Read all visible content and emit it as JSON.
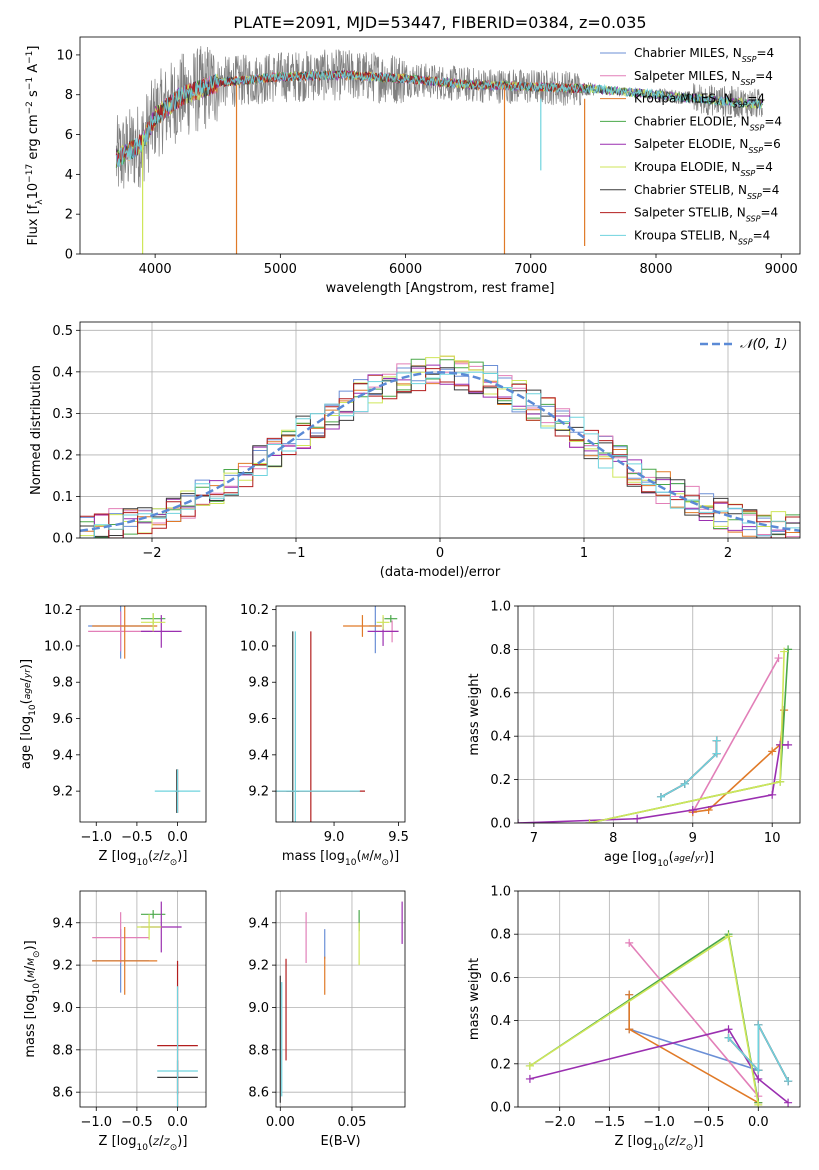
{
  "title": "PLATE=2091, MJD=53447, FIBERID=0384, z=0.035",
  "colors": {
    "Chabrier MILES": "#6b8fd6",
    "Salpeter MILES": "#e27fb8",
    "Kroupa MILES": "#e07a28",
    "Chabrier ELODIE": "#4aa84a",
    "Salpeter ELODIE": "#9a2fb0",
    "Kroupa ELODIE": "#cfe65a",
    "Chabrier STELIB": "#3a3a3a",
    "Salpeter STELIB": "#b21e1e",
    "Kroupa STELIB": "#6fd3de"
  },
  "legend": [
    {
      "name": "Chabrier MILES",
      "base": "Chabrier MILES, N",
      "sub": "SSP",
      "n": "=4"
    },
    {
      "name": "Salpeter MILES",
      "base": "Salpeter MILES, N",
      "sub": "SSP",
      "n": "=4"
    },
    {
      "name": "Kroupa MILES",
      "base": "Kroupa MILES, N",
      "sub": "SSP",
      "n": "=4"
    },
    {
      "name": "Chabrier ELODIE",
      "base": "Chabrier ELODIE, N",
      "sub": "SSP",
      "n": "=4"
    },
    {
      "name": "Salpeter ELODIE",
      "base": "Salpeter ELODIE, N",
      "sub": "SSP",
      "n": "=6"
    },
    {
      "name": "Kroupa ELODIE",
      "base": "Kroupa ELODIE, N",
      "sub": "SSP",
      "n": "=4"
    },
    {
      "name": "Chabrier STELIB",
      "base": "Chabrier STELIB, N",
      "sub": "SSP",
      "n": "=4"
    },
    {
      "name": "Salpeter STELIB",
      "base": "Salpeter STELIB, N",
      "sub": "SSP",
      "n": "=4"
    },
    {
      "name": "Kroupa STELIB",
      "base": "Kroupa STELIB, N",
      "sub": "SSP",
      "n": "=4"
    }
  ],
  "chart_data": [
    {
      "id": "spectrum",
      "type": "line",
      "xlabel": "wavelength [Angstrom, rest frame]",
      "ylabel": "Flux [fλ10⁻¹⁷ erg cm⁻² s⁻¹ A⁻¹]",
      "xlim": [
        3400,
        9150
      ],
      "ylim": [
        0,
        10.9
      ],
      "xticks": [
        4000,
        5000,
        6000,
        7000,
        8000,
        9000
      ],
      "yticks": [
        0,
        2,
        4,
        6,
        8,
        10
      ],
      "grid": false,
      "legend_position": "right",
      "data_wavelength_range": [
        3690,
        8850
      ],
      "model_wavelength_range": [
        3690,
        7430
      ],
      "continuum": [
        [
          3700,
          4.8
        ],
        [
          3900,
          5.6
        ],
        [
          4000,
          6.9
        ],
        [
          4200,
          7.9
        ],
        [
          4500,
          8.6
        ],
        [
          5000,
          8.9
        ],
        [
          5500,
          9.0
        ],
        [
          6000,
          8.8
        ],
        [
          6500,
          8.5
        ],
        [
          7000,
          8.4
        ],
        [
          7500,
          8.3
        ],
        [
          8000,
          8.0
        ],
        [
          8500,
          7.7
        ],
        [
          8850,
          7.5
        ]
      ]
    },
    {
      "id": "residuals",
      "type": "line",
      "xlabel": "(data-model)/error",
      "ylabel": "Normed distribution",
      "xlim": [
        -2.5,
        2.5
      ],
      "ylim": [
        0,
        0.52
      ],
      "xticks": [
        -2,
        -1,
        0,
        1,
        2
      ],
      "yticks": [
        0,
        0.1,
        0.2,
        0.3,
        0.4,
        0.5
      ],
      "grid": true,
      "legend_position": "top-right",
      "gaussian_label": "𝒩(0, 1)",
      "bin_width": 0.1,
      "histogram_shape": "standard normal, per-bin deviations about 0.02-0.05"
    },
    {
      "id": "age_vs_Z",
      "type": "scatter",
      "xlabel": "Z [log10(Z/Z⊙)]",
      "ylabel": "age  [log10(age/yr)]",
      "xlim": [
        -1.2,
        0.35
      ],
      "ylim": [
        9.03,
        10.22
      ],
      "xticks": [
        -1.0,
        -0.5,
        0.0
      ],
      "yticks": [
        9.2,
        9.4,
        9.6,
        9.8,
        10.0,
        10.2
      ],
      "grid": false,
      "points": [
        {
          "m": "Chabrier MILES",
          "x": -0.7,
          "xe": 0.4,
          "y": 10.11,
          "ye": 0.18
        },
        {
          "m": "Salpeter MILES",
          "x": -0.7,
          "xe": 0.4,
          "y": 10.08,
          "ye": 0.11
        },
        {
          "m": "Kroupa MILES",
          "x": -0.65,
          "xe": 0.4,
          "y": 10.11,
          "ye": 0.18
        },
        {
          "m": "Chabrier ELODIE",
          "x": -0.3,
          "xe": 0.15,
          "y": 10.15,
          "ye": 0.03
        },
        {
          "m": "Salpeter ELODIE",
          "x": -0.2,
          "xe": 0.25,
          "y": 10.08,
          "ye": 0.09
        },
        {
          "m": "Kroupa ELODIE",
          "x": -0.3,
          "xe": 0.15,
          "y": 10.13,
          "ye": 0.05
        },
        {
          "m": "Chabrier STELIB",
          "x": -0.01,
          "xe": 0.02,
          "y": 9.2,
          "ye": 0.12
        },
        {
          "m": "Salpeter STELIB",
          "x": 0.0,
          "xe": 0.02,
          "y": 9.2,
          "ye": 0.12
        },
        {
          "m": "Kroupa STELIB",
          "x": 0.0,
          "xe": 0.28,
          "y": 9.2,
          "ye": 0.12
        }
      ]
    },
    {
      "id": "age_vs_mass",
      "type": "scatter",
      "xlabel": "mass [log10(M/M⊙)]",
      "xlim": [
        8.55,
        9.55
      ],
      "ylim": [
        9.03,
        10.22
      ],
      "xticks": [
        9.0,
        9.5
      ],
      "yticks": [
        9.2,
        9.4,
        9.6,
        9.8,
        10.0,
        10.2
      ],
      "grid": false,
      "points": [
        {
          "m": "Chabrier MILES",
          "x": 9.32,
          "xe": 0.05,
          "y": 10.11,
          "ye": 0.15
        },
        {
          "m": "Salpeter MILES",
          "x": 9.45,
          "xe": 0.05,
          "y": 10.08,
          "ye": 0.06
        },
        {
          "m": "Kroupa MILES",
          "x": 9.22,
          "xe": 0.15,
          "y": 10.11,
          "ye": 0.06
        },
        {
          "m": "Chabrier ELODIE",
          "x": 9.44,
          "xe": 0.05,
          "y": 10.15,
          "ye": 0.02
        },
        {
          "m": "Salpeter ELODIE",
          "x": 9.38,
          "xe": 0.12,
          "y": 10.08,
          "ye": 0.08
        },
        {
          "m": "Kroupa ELODIE",
          "x": 9.38,
          "xe": 0.05,
          "y": 10.13,
          "ye": 0.04
        },
        {
          "m": "Chabrier STELIB",
          "x": 8.68,
          "xe": 0.05,
          "y": 9.2,
          "ye": 0.88
        },
        {
          "m": "Salpeter STELIB",
          "x": 8.82,
          "xe": 0.42,
          "y": 9.2,
          "ye": 0.88
        },
        {
          "m": "Kroupa STELIB",
          "x": 8.7,
          "xe": 0.5,
          "y": 9.2,
          "ye": 0.88
        }
      ]
    },
    {
      "id": "weight_vs_age",
      "type": "line",
      "xlabel": "age  [log10(age/yr)]",
      "ylabel": "mass weight",
      "xlim": [
        6.8,
        10.35
      ],
      "ylim": [
        0,
        1.0
      ],
      "xticks": [
        7,
        8,
        9,
        10
      ],
      "yticks": [
        0,
        0.2,
        0.4,
        0.6,
        0.8,
        1.0
      ],
      "grid": true,
      "series": [
        {
          "name": "Chabrier MILES",
          "points": [
            [
              8.6,
              0.12
            ],
            [
              8.9,
              0.18
            ],
            [
              9.3,
              0.32
            ],
            [
              9.3,
              0.38
            ]
          ]
        },
        {
          "name": "Salpeter MILES",
          "points": [
            [
              9.0,
              0.05
            ],
            [
              10.08,
              0.76
            ]
          ]
        },
        {
          "name": "Kroupa MILES",
          "points": [
            [
              9.0,
              0.05
            ],
            [
              9.2,
              0.06
            ],
            [
              10.0,
              0.33
            ],
            [
              10.1,
              0.36
            ],
            [
              10.15,
              0.52
            ]
          ]
        },
        {
          "name": "Chabrier ELODIE",
          "points": [
            [
              7.7,
              0.0
            ],
            [
              10.1,
              0.19
            ],
            [
              10.2,
              0.8
            ]
          ]
        },
        {
          "name": "Salpeter ELODIE",
          "points": [
            [
              6.8,
              0.0
            ],
            [
              8.3,
              0.02
            ],
            [
              9.0,
              0.06
            ],
            [
              10.0,
              0.13
            ],
            [
              10.1,
              0.36
            ],
            [
              10.2,
              0.36
            ]
          ]
        },
        {
          "name": "Kroupa ELODIE",
          "points": [
            [
              7.7,
              0.0
            ],
            [
              10.1,
              0.19
            ],
            [
              10.15,
              0.79
            ]
          ]
        },
        {
          "name": "Chabrier STELIB",
          "points": [
            [
              8.6,
              0.12
            ],
            [
              8.9,
              0.18
            ],
            [
              9.3,
              0.32
            ],
            [
              9.3,
              0.38
            ]
          ]
        },
        {
          "name": "Salpeter STELIB",
          "points": [
            [
              8.6,
              0.12
            ],
            [
              8.9,
              0.18
            ],
            [
              9.3,
              0.32
            ],
            [
              9.3,
              0.38
            ]
          ]
        },
        {
          "name": "Kroupa STELIB",
          "points": [
            [
              8.6,
              0.12
            ],
            [
              8.9,
              0.18
            ],
            [
              9.3,
              0.32
            ],
            [
              9.3,
              0.38
            ]
          ]
        }
      ]
    },
    {
      "id": "mass_vs_Z",
      "type": "scatter",
      "xlabel": "Z [log10(Z/Z⊙)]",
      "ylabel": "mass [log10(M/M⊙)]",
      "xlim": [
        -1.2,
        0.35
      ],
      "ylim": [
        8.53,
        9.55
      ],
      "xticks": [
        -1.0,
        -0.5,
        0.0
      ],
      "yticks": [
        8.6,
        8.8,
        9.0,
        9.2,
        9.4
      ],
      "grid": true,
      "points": [
        {
          "m": "Chabrier MILES",
          "x": -0.7,
          "xe": 0.35,
          "y": 9.22,
          "ye": 0.15
        },
        {
          "m": "Salpeter MILES",
          "x": -0.7,
          "xe": 0.35,
          "y": 9.33,
          "ye": 0.12
        },
        {
          "m": "Kroupa MILES",
          "x": -0.65,
          "xe": 0.4,
          "y": 9.22,
          "ye": 0.16
        },
        {
          "m": "Chabrier ELODIE",
          "x": -0.3,
          "xe": 0.15,
          "y": 9.44,
          "ye": 0.02
        },
        {
          "m": "Salpeter ELODIE",
          "x": -0.2,
          "xe": 0.25,
          "y": 9.38,
          "ye": 0.12
        },
        {
          "m": "Kroupa ELODIE",
          "x": -0.35,
          "xe": 0.15,
          "y": 9.38,
          "ye": 0.06
        },
        {
          "m": "Chabrier STELIB",
          "x": 0.0,
          "xe": 0.25,
          "y": 8.67,
          "ye": 0.08
        },
        {
          "m": "Salpeter STELIB",
          "x": 0.0,
          "xe": 0.25,
          "y": 8.82,
          "ye": 0.4
        },
        {
          "m": "Kroupa STELIB",
          "x": 0.0,
          "xe": 0.25,
          "y": 8.7,
          "ye": 0.4
        }
      ]
    },
    {
      "id": "mass_vs_ebv",
      "type": "scatter",
      "xlabel": "E(B-V)",
      "xlim": [
        -0.003,
        0.087
      ],
      "ylim": [
        8.53,
        9.55
      ],
      "xticks": [
        0.0,
        0.05
      ],
      "yticks": [
        8.6,
        8.8,
        9.0,
        9.2,
        9.4
      ],
      "grid": true,
      "points": [
        {
          "m": "Chabrier MILES",
          "x": 0.031,
          "y": 9.3,
          "ye": 0.07
        },
        {
          "m": "Salpeter MILES",
          "x": 0.018,
          "y": 9.33,
          "ye": 0.12
        },
        {
          "m": "Kroupa MILES",
          "x": 0.031,
          "y": 9.15,
          "ye": 0.09
        },
        {
          "m": "Chabrier ELODIE",
          "x": 0.055,
          "y": 9.41,
          "ye": 0.05
        },
        {
          "m": "Salpeter ELODIE",
          "x": 0.085,
          "y": 9.4,
          "ye": 0.1
        },
        {
          "m": "Kroupa ELODIE",
          "x": 0.055,
          "y": 9.3,
          "ye": 0.1
        },
        {
          "m": "Chabrier STELIB",
          "x": 0.0,
          "y": 8.85,
          "ye": 0.3
        },
        {
          "m": "Salpeter STELIB",
          "x": 0.004,
          "y": 8.99,
          "ye": 0.24
        },
        {
          "m": "Kroupa STELIB",
          "x": 0.001,
          "y": 8.85,
          "ye": 0.27
        }
      ]
    },
    {
      "id": "weight_vs_Z",
      "type": "line",
      "xlabel": "Z [log10(Z/Z⊙)]",
      "ylabel": "mass weight",
      "xlim": [
        -2.42,
        0.42
      ],
      "ylim": [
        0,
        1.0
      ],
      "xticks": [
        -2.0,
        -1.5,
        -1.0,
        -0.5,
        0.0
      ],
      "yticks": [
        0,
        0.2,
        0.4,
        0.6,
        0.8,
        1.0
      ],
      "grid": true,
      "series": [
        {
          "name": "Chabrier MILES",
          "points": [
            [
              -1.3,
              0.52
            ],
            [
              -1.3,
              0.36
            ],
            [
              0.0,
              0.17
            ],
            [
              0.0,
              0.38
            ],
            [
              0.3,
              0.12
            ]
          ]
        },
        {
          "name": "Salpeter MILES",
          "points": [
            [
              -1.3,
              0.76
            ],
            [
              0.0,
              0.05
            ]
          ]
        },
        {
          "name": "Kroupa MILES",
          "points": [
            [
              -1.3,
              0.52
            ],
            [
              -1.3,
              0.36
            ],
            [
              0.0,
              0.02
            ]
          ]
        },
        {
          "name": "Chabrier ELODIE",
          "points": [
            [
              -2.3,
              0.19
            ],
            [
              -0.3,
              0.8
            ],
            [
              0.0,
              0.02
            ]
          ]
        },
        {
          "name": "Salpeter ELODIE",
          "points": [
            [
              -2.3,
              0.13
            ],
            [
              -0.3,
              0.36
            ],
            [
              0.0,
              0.13
            ],
            [
              0.3,
              0.02
            ]
          ]
        },
        {
          "name": "Kroupa ELODIE",
          "points": [
            [
              -2.3,
              0.19
            ],
            [
              -0.3,
              0.79
            ],
            [
              0.0,
              0.01
            ]
          ]
        },
        {
          "name": "Chabrier STELIB",
          "points": [
            [
              -0.3,
              0.32
            ],
            [
              0.0,
              0.17
            ],
            [
              0.0,
              0.38
            ],
            [
              0.3,
              0.12
            ]
          ]
        },
        {
          "name": "Salpeter STELIB",
          "points": [
            [
              -0.3,
              0.32
            ],
            [
              0.0,
              0.17
            ],
            [
              0.0,
              0.38
            ],
            [
              0.3,
              0.12
            ]
          ]
        },
        {
          "name": "Kroupa STELIB",
          "points": [
            [
              -0.3,
              0.32
            ],
            [
              0.0,
              0.17
            ],
            [
              0.0,
              0.38
            ],
            [
              0.3,
              0.12
            ]
          ]
        }
      ]
    }
  ]
}
